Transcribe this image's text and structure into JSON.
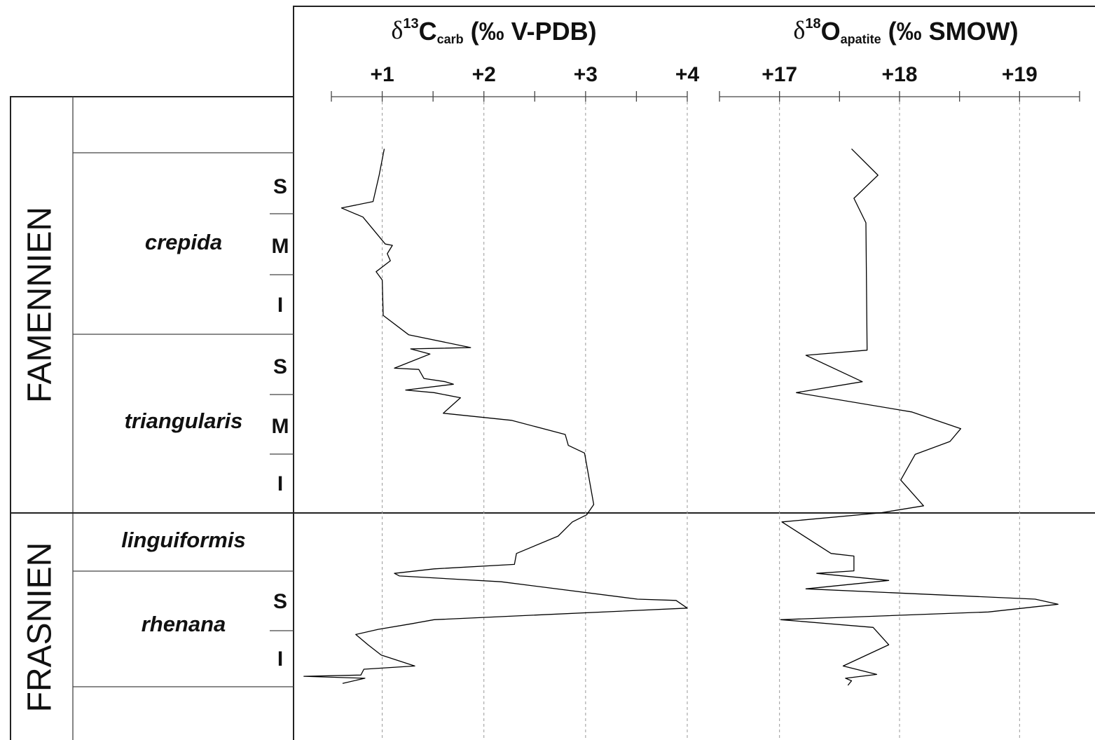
{
  "chart_data": [
    {
      "type": "line",
      "title": {
        "symbol": "δ",
        "sup": "13",
        "element": "C",
        "sub": "carb",
        "unit": "(‰ V-PDB)"
      },
      "color": "#000000",
      "grid": true,
      "xlim": [
        0.5,
        4
      ],
      "depthlim": [
        0,
        100
      ],
      "xticks": [
        {
          "value": 1,
          "label": "+1"
        },
        {
          "value": 2,
          "label": "+2"
        },
        {
          "value": 3,
          "label": "+3"
        },
        {
          "value": 4,
          "label": "+4"
        }
      ],
      "xminorticks": [
        0.5,
        1.5,
        2.5,
        3.5
      ],
      "values": [
        1.02,
        0.97,
        0.91,
        0.6,
        0.81,
        1.03,
        1.1,
        1.05,
        1.08,
        0.94,
        1.0,
        1.01,
        1.26,
        1.87,
        1.28,
        1.47,
        1.12,
        1.36,
        1.41,
        1.62,
        1.7,
        1.23,
        1.51,
        1.77,
        1.6,
        2.27,
        2.8,
        2.83,
        2.99,
        3.08,
        3.01,
        2.87,
        2.73,
        2.32,
        2.3,
        1.51,
        1.12,
        1.17,
        2.17,
        3.51,
        3.89,
        4.0,
        2.48,
        1.51,
        1.3,
        0.96,
        0.74,
        0.86,
        0.99,
        1.32,
        0.82,
        0.79,
        0.23,
        0.83,
        0.61
      ],
      "depth": [
        8.1,
        12.2,
        16.3,
        17.3,
        18.7,
        22.9,
        23.1,
        24.4,
        25.5,
        27.2,
        28.5,
        34.0,
        37.0,
        39.0,
        39.2,
        40.0,
        42.2,
        42.4,
        43.8,
        44.3,
        44.7,
        45.6,
        46.0,
        46.8,
        49.2,
        50.3,
        52.5,
        54.2,
        55.4,
        63.4,
        65.0,
        66.1,
        68.3,
        71.0,
        72.7,
        73.4,
        74.1,
        74.5,
        75.4,
        78.1,
        78.3,
        79.5,
        80.6,
        81.3,
        81.9,
        82.8,
        83.6,
        85.2,
        86.8,
        88.5,
        89.0,
        89.9,
        90.1,
        90.4,
        91.2
      ]
    },
    {
      "type": "line",
      "title": {
        "symbol": "δ",
        "sup": "18",
        "element": "O",
        "sub": "apatite",
        "unit": "(‰ SMOW)"
      },
      "color": "#000000",
      "grid": true,
      "xlim": [
        16.5,
        19.5
      ],
      "depthlim": [
        0,
        100
      ],
      "xticks": [
        {
          "value": 17,
          "label": "+17"
        },
        {
          "value": 18,
          "label": "+18"
        },
        {
          "value": 19,
          "label": "+19"
        }
      ],
      "xminorticks": [
        16.5,
        17.5,
        18.5,
        19.5
      ],
      "values": [
        17.6,
        17.82,
        17.62,
        17.72,
        17.73,
        17.22,
        17.69,
        17.14,
        18.1,
        18.51,
        18.42,
        18.13,
        18.01,
        18.2,
        17.84,
        17.02,
        17.43,
        17.62,
        17.62,
        17.31,
        17.91,
        17.22,
        19.13,
        19.32,
        18.74,
        17.01,
        17.78,
        17.91,
        17.53,
        17.81,
        17.55,
        17.6,
        17.57
      ],
      "depth": [
        8.1,
        12.2,
        15.8,
        19.6,
        39.4,
        40.2,
        44.3,
        46.0,
        49.0,
        51.6,
        53.6,
        55.6,
        59.6,
        63.6,
        64.7,
        66.1,
        71.0,
        71.4,
        73.7,
        74.1,
        75.2,
        76.5,
        78.1,
        78.9,
        80.1,
        81.3,
        82.5,
        85.2,
        88.5,
        89.8,
        90.4,
        90.8,
        91.5
      ]
    }
  ],
  "stratigraphy": {
    "stages": [
      "FAMENNIEN",
      "FRASNIEN"
    ],
    "zones": [
      "crepida",
      "triangularis",
      "linguiformis",
      "rhenana"
    ],
    "subzones": [
      "S",
      "M",
      "I",
      "S",
      "M",
      "I",
      "S",
      "I"
    ]
  }
}
